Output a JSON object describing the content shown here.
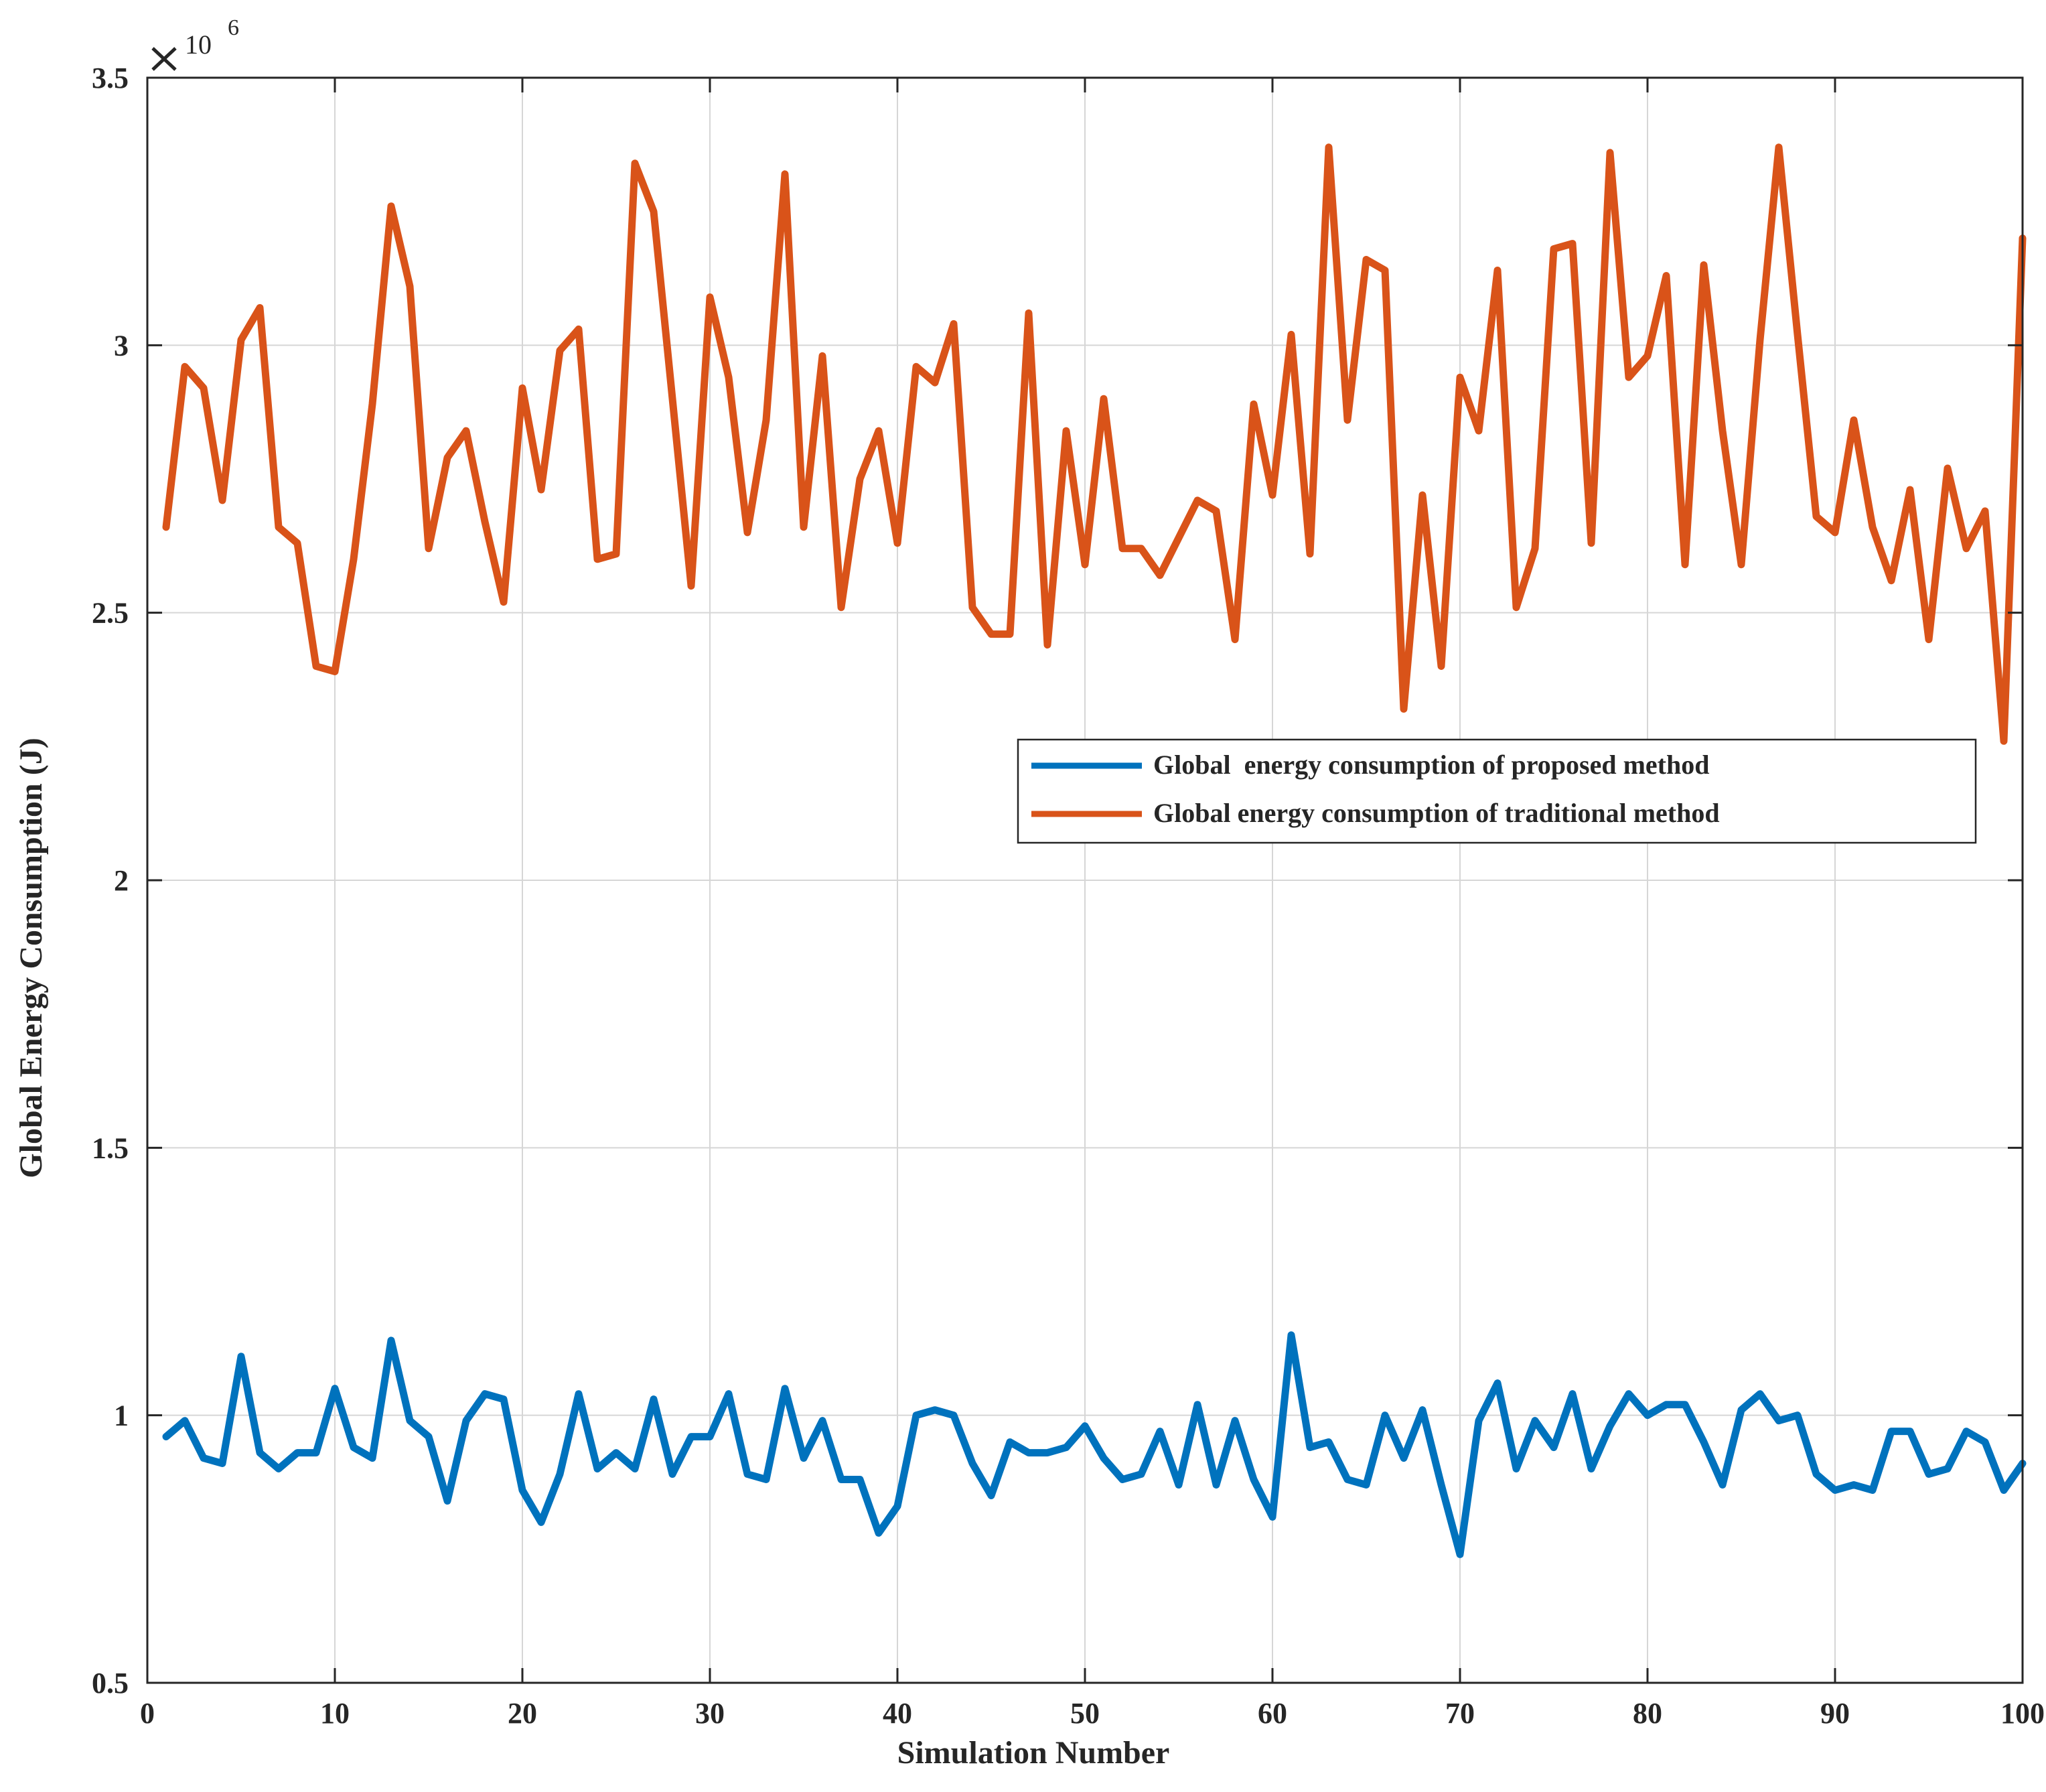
{
  "chart_data": {
    "type": "line",
    "title": "",
    "xlabel": "Simulation Number",
    "ylabel": "Global Energy Consumption (J)",
    "xlim": [
      0,
      100
    ],
    "ylim": [
      0.5,
      3.5
    ],
    "y_multiplier_label": "× 10^6",
    "y_exponent_base": "10",
    "y_exponent": "6",
    "x_ticks": [
      0,
      10,
      20,
      30,
      40,
      50,
      60,
      70,
      80,
      90,
      100
    ],
    "x_tick_labels": [
      "0",
      "10",
      "20",
      "30",
      "40",
      "50",
      "60",
      "70",
      "80",
      "90",
      "100"
    ],
    "y_ticks": [
      0.5,
      1,
      1.5,
      2,
      2.5,
      3,
      3.5
    ],
    "y_tick_labels": [
      "0.5",
      "1",
      "1.5",
      "2",
      "2.5",
      "3",
      "3.5"
    ],
    "grid": true,
    "legend_position": "center-right",
    "x": [
      1,
      2,
      3,
      4,
      5,
      6,
      7,
      8,
      9,
      10,
      11,
      12,
      13,
      14,
      15,
      16,
      17,
      18,
      19,
      20,
      21,
      22,
      23,
      24,
      25,
      26,
      27,
      28,
      29,
      30,
      31,
      32,
      33,
      34,
      35,
      36,
      37,
      38,
      39,
      40,
      41,
      42,
      43,
      44,
      45,
      46,
      47,
      48,
      49,
      50,
      51,
      52,
      53,
      54,
      55,
      56,
      57,
      58,
      59,
      60,
      61,
      62,
      63,
      64,
      65,
      66,
      67,
      68,
      69,
      70,
      71,
      72,
      73,
      74,
      75,
      76,
      77,
      78,
      79,
      80,
      81,
      82,
      83,
      84,
      85,
      86,
      87,
      88,
      89,
      90,
      91,
      92,
      93,
      94,
      95,
      96,
      97,
      98,
      99,
      100
    ],
    "series": [
      {
        "name": "Global  energy consumption of proposed method",
        "color": "#0072BD",
        "values": [
          0.96,
          0.99,
          0.92,
          0.91,
          1.11,
          0.93,
          0.9,
          0.93,
          0.93,
          1.05,
          0.94,
          0.92,
          1.14,
          0.99,
          0.96,
          0.84,
          0.99,
          1.04,
          1.03,
          0.86,
          0.8,
          0.89,
          1.04,
          0.9,
          0.93,
          0.9,
          1.03,
          0.89,
          0.96,
          0.96,
          1.04,
          0.89,
          0.88,
          1.05,
          0.92,
          0.99,
          0.88,
          0.88,
          0.78,
          0.83,
          1.0,
          1.01,
          1.0,
          0.91,
          0.85,
          0.95,
          0.93,
          0.93,
          0.94,
          0.98,
          0.92,
          0.88,
          0.89,
          0.97,
          0.87,
          1.02,
          0.87,
          0.99,
          0.88,
          0.81,
          1.15,
          0.94,
          0.95,
          0.88,
          0.87,
          1.0,
          0.92,
          1.01,
          0.87,
          0.74,
          0.99,
          1.06,
          0.9,
          0.99,
          0.94,
          1.04,
          0.9,
          0.98,
          1.04,
          1.0,
          1.02,
          1.02,
          0.95,
          0.87,
          1.01,
          1.04,
          0.99,
          1.0,
          0.89,
          0.86,
          0.87,
          0.86,
          0.97,
          0.97,
          0.89,
          0.9,
          0.97,
          0.95,
          0.86,
          0.91
        ]
      },
      {
        "name": "Global energy consumption of traditional method",
        "color": "#D95319",
        "values": [
          2.66,
          2.96,
          2.92,
          2.71,
          3.01,
          3.07,
          2.66,
          2.63,
          2.4,
          2.39,
          2.6,
          2.89,
          3.26,
          3.11,
          2.62,
          2.79,
          2.84,
          2.67,
          2.52,
          2.92,
          2.73,
          2.99,
          3.03,
          2.6,
          2.61,
          3.34,
          3.25,
          2.9,
          2.55,
          3.09,
          2.94,
          2.65,
          2.86,
          3.32,
          2.66,
          2.98,
          2.51,
          2.75,
          2.84,
          2.63,
          2.96,
          2.93,
          3.04,
          2.51,
          2.46,
          2.46,
          3.06,
          2.44,
          2.84,
          2.59,
          2.9,
          2.62,
          2.62,
          2.57,
          2.64,
          2.71,
          2.69,
          2.45,
          2.89,
          2.72,
          3.02,
          2.61,
          3.37,
          2.86,
          3.16,
          3.14,
          2.32,
          2.72,
          2.4,
          2.94,
          2.84,
          3.14,
          2.51,
          2.62,
          3.18,
          3.19,
          2.63,
          3.36,
          2.94,
          2.98,
          3.13,
          2.59,
          3.15,
          2.84,
          2.59,
          3.01,
          3.37,
          3.02,
          2.68,
          2.65,
          2.86,
          2.66,
          2.56,
          2.73,
          2.45,
          2.77,
          2.62,
          2.69,
          2.26,
          3.2
        ]
      }
    ]
  }
}
